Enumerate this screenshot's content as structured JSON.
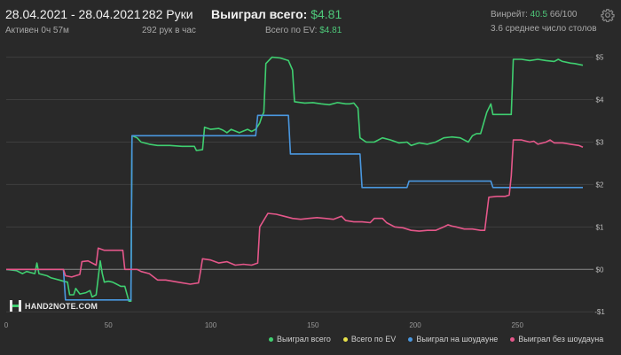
{
  "header": {
    "date_range": "28.04.2021 - 28.04.2021",
    "active_time": "Активен 0ч 57м",
    "hands": "282 Руки",
    "hands_per_hour": "292 рук в час",
    "won_label": "Выиграл всего:",
    "won_value": "$4.81",
    "ev_label": "Всего по EV:",
    "ev_value": "$4.81",
    "winrate_label": "Винрейт:",
    "winrate_value": "40.5",
    "winrate_count": "66/100",
    "avg_tables": "3.6 среднее число столов"
  },
  "logo": {
    "text": "HAND2NOTE.COM",
    "icon": "hand2note-logo-icon"
  },
  "icons": {
    "settings": "gear-icon"
  },
  "colors": {
    "background": "#292929",
    "grid": "#3e3e3e",
    "zero_line": "#8a8a8a",
    "green": "#3fcf70",
    "yellow": "#e8e24a",
    "blue": "#4a98e0",
    "pink": "#e5578a"
  },
  "chart_data": {
    "type": "line",
    "xlim": [
      0,
      282
    ],
    "ylim": [
      -1.1,
      5.2
    ],
    "x_ticks": [
      0,
      50,
      100,
      150,
      200,
      250
    ],
    "y_ticks": [
      {
        "value": 5,
        "label": "$5"
      },
      {
        "value": 4,
        "label": "$4"
      },
      {
        "value": 3,
        "label": "$3"
      },
      {
        "value": 2,
        "label": "$2"
      },
      {
        "value": 1,
        "label": "$1"
      },
      {
        "value": 0,
        "label": "$0"
      },
      {
        "value": -1,
        "label": "-$1"
      }
    ],
    "legend_position": "bottom",
    "series": [
      {
        "name": "Выиграл всего",
        "color": "#3fcf70",
        "points": [
          [
            0,
            0
          ],
          [
            5,
            -0.03
          ],
          [
            8,
            -0.1
          ],
          [
            10,
            -0.05
          ],
          [
            14,
            -0.1
          ],
          [
            15,
            0.15
          ],
          [
            16,
            -0.1
          ],
          [
            20,
            -0.15
          ],
          [
            22,
            -0.2
          ],
          [
            26,
            -0.25
          ],
          [
            28,
            -0.28
          ],
          [
            30,
            -0.3
          ],
          [
            31,
            -0.6
          ],
          [
            33,
            -0.6
          ],
          [
            34,
            -0.45
          ],
          [
            36,
            -0.58
          ],
          [
            39,
            -0.55
          ],
          [
            41,
            -0.5
          ],
          [
            42,
            -0.65
          ],
          [
            44,
            -0.6
          ],
          [
            45,
            -0.2
          ],
          [
            46,
            0.2
          ],
          [
            47,
            -0.1
          ],
          [
            48,
            -0.3
          ],
          [
            50,
            -0.28
          ],
          [
            52,
            -0.3
          ],
          [
            54,
            -0.35
          ],
          [
            56,
            -0.4
          ],
          [
            58,
            -0.4
          ],
          [
            60,
            -0.75
          ],
          [
            61,
            -0.75
          ],
          [
            61.5,
            3.15
          ],
          [
            64,
            3.1
          ],
          [
            66,
            3.0
          ],
          [
            70,
            2.95
          ],
          [
            74,
            2.92
          ],
          [
            80,
            2.92
          ],
          [
            86,
            2.9
          ],
          [
            92,
            2.9
          ],
          [
            93,
            2.8
          ],
          [
            96,
            2.82
          ],
          [
            97,
            3.35
          ],
          [
            100,
            3.3
          ],
          [
            104,
            3.32
          ],
          [
            106,
            3.28
          ],
          [
            108,
            3.22
          ],
          [
            110,
            3.3
          ],
          [
            114,
            3.22
          ],
          [
            118,
            3.3
          ],
          [
            120,
            3.25
          ],
          [
            122,
            3.3
          ],
          [
            124,
            3.45
          ],
          [
            125,
            3.6
          ],
          [
            126,
            3.7
          ],
          [
            127,
            4.85
          ],
          [
            130,
            5.0
          ],
          [
            134,
            4.98
          ],
          [
            138,
            4.92
          ],
          [
            140,
            4.7
          ],
          [
            141,
            3.95
          ],
          [
            146,
            3.92
          ],
          [
            150,
            3.93
          ],
          [
            154,
            3.9
          ],
          [
            158,
            3.88
          ],
          [
            162,
            3.93
          ],
          [
            166,
            3.9
          ],
          [
            168,
            3.9
          ],
          [
            170,
            3.92
          ],
          [
            172,
            3.8
          ],
          [
            173,
            3.1
          ],
          [
            176,
            3.0
          ],
          [
            180,
            3.0
          ],
          [
            184,
            3.1
          ],
          [
            188,
            3.05
          ],
          [
            192,
            2.98
          ],
          [
            196,
            3.0
          ],
          [
            198,
            2.92
          ],
          [
            202,
            2.98
          ],
          [
            206,
            2.95
          ],
          [
            210,
            3.0
          ],
          [
            214,
            3.1
          ],
          [
            218,
            3.12
          ],
          [
            222,
            3.1
          ],
          [
            226,
            3.0
          ],
          [
            228,
            3.15
          ],
          [
            230,
            3.2
          ],
          [
            232,
            3.2
          ],
          [
            235,
            3.7
          ],
          [
            237,
            3.9
          ],
          [
            238,
            3.65
          ],
          [
            242,
            3.65
          ],
          [
            247,
            3.65
          ],
          [
            248,
            4.95
          ],
          [
            252,
            4.95
          ],
          [
            256,
            4.92
          ],
          [
            260,
            4.95
          ],
          [
            264,
            4.92
          ],
          [
            268,
            4.9
          ],
          [
            270,
            4.95
          ],
          [
            272,
            4.9
          ],
          [
            276,
            4.86
          ],
          [
            278,
            4.85
          ],
          [
            282,
            4.81
          ]
        ]
      },
      {
        "name": "Всего по EV",
        "color": "#e8e24a",
        "points": []
      },
      {
        "name": "Выиграл на шоудауне",
        "color": "#4a98e0",
        "points": [
          [
            0,
            0
          ],
          [
            28,
            0
          ],
          [
            29,
            -0.72
          ],
          [
            59,
            -0.72
          ],
          [
            61,
            -0.72
          ],
          [
            61.5,
            3.15
          ],
          [
            92,
            3.15
          ],
          [
            97,
            3.15
          ],
          [
            122,
            3.15
          ],
          [
            123,
            3.63
          ],
          [
            138,
            3.63
          ],
          [
            139,
            2.72
          ],
          [
            159,
            2.72
          ],
          [
            173,
            2.72
          ],
          [
            174,
            1.93
          ],
          [
            193,
            1.93
          ],
          [
            196,
            1.93
          ],
          [
            197,
            2.08
          ],
          [
            237,
            2.08
          ],
          [
            238,
            1.93
          ],
          [
            282,
            1.93
          ]
        ]
      },
      {
        "name": "Выиграл без шоудауна",
        "color": "#e5578a",
        "points": [
          [
            0,
            0
          ],
          [
            28,
            0
          ],
          [
            29,
            -0.15
          ],
          [
            32,
            -0.18
          ],
          [
            36,
            -0.12
          ],
          [
            37,
            0.18
          ],
          [
            40,
            0.2
          ],
          [
            44,
            0.1
          ],
          [
            45,
            0.5
          ],
          [
            48,
            0.45
          ],
          [
            52,
            0.45
          ],
          [
            57,
            0.45
          ],
          [
            58,
            0
          ],
          [
            64,
            0
          ],
          [
            66,
            -0.05
          ],
          [
            70,
            -0.1
          ],
          [
            74,
            -0.25
          ],
          [
            78,
            -0.25
          ],
          [
            84,
            -0.3
          ],
          [
            90,
            -0.35
          ],
          [
            94,
            -0.32
          ],
          [
            95,
            -0.05
          ],
          [
            96,
            0.25
          ],
          [
            100,
            0.22
          ],
          [
            104,
            0.15
          ],
          [
            108,
            0.18
          ],
          [
            112,
            0.1
          ],
          [
            116,
            0.12
          ],
          [
            120,
            0.1
          ],
          [
            123,
            0.15
          ],
          [
            124,
            1.0
          ],
          [
            128,
            1.32
          ],
          [
            132,
            1.3
          ],
          [
            136,
            1.25
          ],
          [
            140,
            1.2
          ],
          [
            144,
            1.18
          ],
          [
            148,
            1.2
          ],
          [
            152,
            1.22
          ],
          [
            156,
            1.2
          ],
          [
            160,
            1.18
          ],
          [
            164,
            1.25
          ],
          [
            166,
            1.15
          ],
          [
            170,
            1.12
          ],
          [
            174,
            1.12
          ],
          [
            178,
            1.1
          ],
          [
            180,
            1.2
          ],
          [
            184,
            1.2
          ],
          [
            186,
            1.1
          ],
          [
            190,
            1.0
          ],
          [
            194,
            0.98
          ],
          [
            198,
            0.92
          ],
          [
            202,
            0.9
          ],
          [
            206,
            0.92
          ],
          [
            210,
            0.92
          ],
          [
            214,
            1.0
          ],
          [
            216,
            1.05
          ],
          [
            218,
            1.02
          ],
          [
            220,
            1.0
          ],
          [
            224,
            0.95
          ],
          [
            228,
            0.95
          ],
          [
            232,
            0.92
          ],
          [
            234,
            0.92
          ],
          [
            236,
            1.7
          ],
          [
            240,
            1.72
          ],
          [
            244,
            1.72
          ],
          [
            246,
            1.75
          ],
          [
            247,
            2.2
          ],
          [
            248,
            3.05
          ],
          [
            252,
            3.05
          ],
          [
            256,
            3.0
          ],
          [
            258,
            3.02
          ],
          [
            260,
            2.95
          ],
          [
            264,
            3.0
          ],
          [
            266,
            3.05
          ],
          [
            268,
            2.98
          ],
          [
            272,
            2.98
          ],
          [
            276,
            2.95
          ],
          [
            280,
            2.92
          ],
          [
            282,
            2.88
          ]
        ]
      }
    ]
  }
}
